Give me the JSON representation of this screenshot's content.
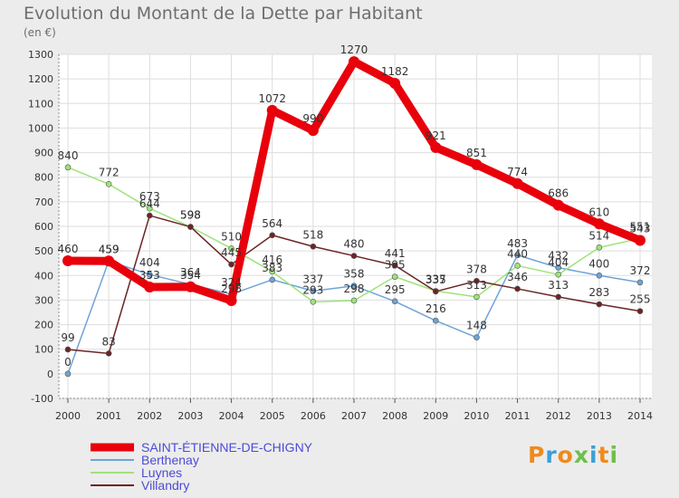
{
  "chart_data": {
    "type": "line",
    "title": "Evolution du Montant de la Dette par Habitant",
    "subtitle": "(en €)",
    "x": [
      "2000",
      "2001",
      "2002",
      "2003",
      "2004",
      "2005",
      "2006",
      "2007",
      "2008",
      "2009",
      "2010",
      "2011",
      "2012",
      "2013",
      "2014"
    ],
    "ylim": [
      -100,
      1300
    ],
    "yticks": [
      -100,
      0,
      100,
      200,
      300,
      400,
      500,
      600,
      700,
      800,
      900,
      1000,
      1100,
      1200,
      1300
    ],
    "series": [
      {
        "name": "SAINT-ÉTIENNE-DE-CHIGNY",
        "color": "#e8000b",
        "width": 9,
        "marker": 6,
        "values": [
          460,
          459,
          353,
          354,
          298,
          1072,
          990,
          1270,
          1182,
          921,
          851,
          774,
          686,
          610,
          543
        ],
        "labels": [
          "460",
          "459",
          "353",
          "354",
          "298",
          "1072",
          "990",
          "1270",
          "1182",
          "921",
          "851",
          "774",
          "686",
          "610",
          "543"
        ]
      },
      {
        "name": "Berthenay",
        "color": "#6fa4d6",
        "width": 1.5,
        "marker": 3,
        "values": [
          0,
          459,
          404,
          364,
          324,
          383,
          337,
          358,
          295,
          216,
          148,
          483,
          432,
          400,
          372
        ],
        "labels": [
          "0",
          "459",
          "404",
          "364",
          "324",
          "383",
          "337",
          "358",
          "295",
          "216",
          "148",
          "483",
          "432",
          "400",
          "372"
        ]
      },
      {
        "name": "Luynes",
        "color": "#9de37a",
        "width": 1.5,
        "marker": 3,
        "values": [
          840,
          772,
          673,
          598,
          510,
          416,
          293,
          298,
          395,
          337,
          313,
          440,
          404,
          514,
          551
        ],
        "labels": [
          "840",
          "772",
          "673",
          "598",
          "510",
          "416",
          "293",
          "298",
          "395",
          "337",
          "313",
          "440",
          "404",
          "514",
          "551"
        ]
      },
      {
        "name": "Villandry",
        "color": "#6b2525",
        "width": 1.5,
        "marker": 3,
        "values": [
          99,
          83,
          644,
          598,
          445,
          564,
          518,
          480,
          441,
          335,
          378,
          346,
          313,
          283,
          255
        ],
        "labels": [
          "99",
          "83",
          "644",
          "598",
          "445",
          "564",
          "518",
          "480",
          "441",
          "335",
          "378",
          "346",
          "313",
          "283",
          "255"
        ]
      }
    ],
    "legend": "bottom-left"
  },
  "logo": {
    "text": "Proxiti",
    "colors": [
      "#f08a1a",
      "#3aa0d8",
      "#f08a1a",
      "#6cc04a",
      "#3aa0d8",
      "#f08a1a",
      "#6cc04a"
    ]
  }
}
